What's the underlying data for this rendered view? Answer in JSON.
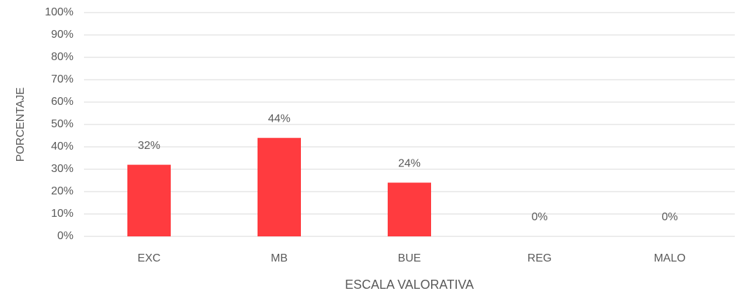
{
  "chart_data": {
    "type": "bar",
    "categories": [
      "EXC",
      "MB",
      "BUE",
      "REG",
      "MALO"
    ],
    "values": [
      32,
      44,
      24,
      0,
      0
    ],
    "value_labels": [
      "32%",
      "44%",
      "24%",
      "0%",
      "0%"
    ],
    "color": "#ff3b3f",
    "ylim": [
      0,
      100
    ],
    "yticks": [
      {
        "value": 0,
        "label": "0%"
      },
      {
        "value": 10,
        "label": "10%"
      },
      {
        "value": 20,
        "label": "20%"
      },
      {
        "value": 30,
        "label": "30%"
      },
      {
        "value": 40,
        "label": "40%"
      },
      {
        "value": 50,
        "label": "50%"
      },
      {
        "value": 60,
        "label": "60%"
      },
      {
        "value": 70,
        "label": "70%"
      },
      {
        "value": 80,
        "label": "80%"
      },
      {
        "value": 90,
        "label": "90%"
      },
      {
        "value": 100,
        "label": "100%"
      }
    ],
    "grid": true,
    "y_label": "PORCENTAJE",
    "x_label": "ESCALA VALORATIVA"
  }
}
